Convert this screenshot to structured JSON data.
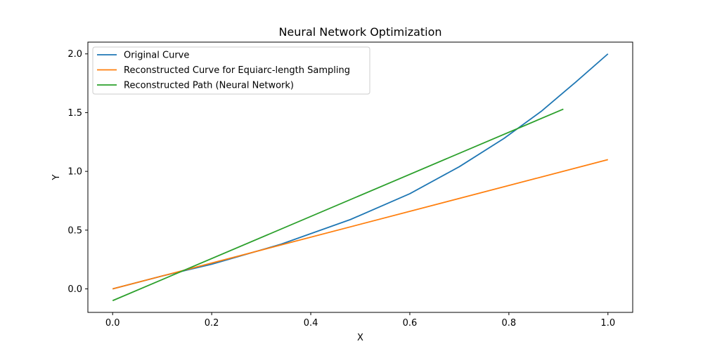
{
  "chart_data": {
    "type": "line",
    "title": "Neural Network Optimization",
    "xlabel": "X",
    "ylabel": "Y",
    "xlim": [
      -0.05,
      1.05
    ],
    "ylim": [
      -0.2,
      2.1
    ],
    "xticks": [
      0.0,
      0.2,
      0.4,
      0.6,
      0.8,
      1.0
    ],
    "xtick_labels": [
      "0.0",
      "0.2",
      "0.4",
      "0.6",
      "0.8",
      "1.0"
    ],
    "yticks": [
      0.0,
      0.5,
      1.0,
      1.5,
      2.0
    ],
    "ytick_labels": [
      "0.0",
      "0.5",
      "1.0",
      "1.5",
      "2.0"
    ],
    "grid": false,
    "legend_position": "upper-left",
    "series": [
      {
        "name": "Original Curve",
        "color": "#1f77b4",
        "x": [
          0.0,
          0.1,
          0.2,
          0.34,
          0.48,
          0.6,
          0.7,
          0.79,
          0.865,
          0.935,
          1.0
        ],
        "y": [
          0.0,
          0.11,
          0.21,
          0.38,
          0.59,
          0.81,
          1.04,
          1.28,
          1.51,
          1.76,
          2.0
        ]
      },
      {
        "name": "Reconstructed Curve for Equiarc-length Sampling",
        "color": "#ff7f0e",
        "x": [
          0.0,
          1.0
        ],
        "y": [
          0.0,
          1.1
        ]
      },
      {
        "name": "Reconstructed Path (Neural Network)",
        "color": "#2ca02c",
        "x": [
          0.0,
          0.91
        ],
        "y": [
          -0.1,
          1.53
        ]
      }
    ]
  }
}
